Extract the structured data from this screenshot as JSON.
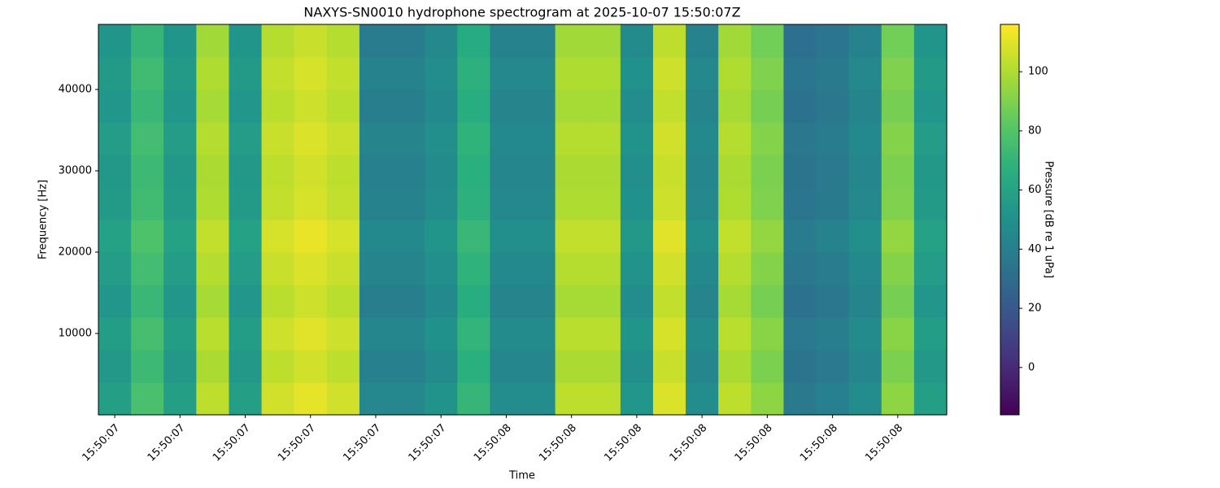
{
  "chart_data": {
    "type": "heatmap",
    "title": "NAXYS-SN0010 hydrophone spectrogram at 2025-10-07 15:50:07Z",
    "x_label": "Time",
    "y_label": "Frequency [Hz]",
    "colorbar_label": "Pressure [dB re 1 uPa]",
    "colormap": "viridis",
    "categories": [
      "15:50:07",
      null,
      "15:50:07",
      null,
      "15:50:07",
      null,
      "15:50:07",
      null,
      "15:50:07",
      null,
      "15:50:07",
      null,
      "15:50:08",
      null,
      "15:50:08",
      null,
      "15:50:08",
      null,
      "15:50:08",
      null,
      "15:50:08",
      null,
      "15:50:08",
      null,
      "15:50:08",
      null
    ],
    "ybins": [
      0,
      4000,
      8000,
      12000,
      16000,
      20000,
      24000,
      28000,
      32000,
      36000,
      40000,
      44000,
      48000
    ],
    "ylim": [
      0,
      48000
    ],
    "yticks": [
      10000,
      20000,
      30000,
      40000
    ],
    "clim": [
      -16,
      116
    ],
    "cticks": [
      0,
      20,
      40,
      60,
      80,
      100
    ],
    "values": [
      [
        58,
        77,
        58,
        103,
        58,
        107,
        111,
        107,
        45,
        45,
        51,
        71,
        48,
        48,
        103,
        103,
        53,
        109,
        48,
        103,
        93,
        38,
        41,
        48,
        93,
        58
      ],
      [
        54,
        73,
        54,
        99,
        54,
        103,
        107,
        103,
        41,
        41,
        47,
        67,
        44,
        44,
        99,
        99,
        49,
        105,
        44,
        99,
        89,
        34,
        37,
        44,
        89,
        54
      ],
      [
        57,
        76,
        57,
        102,
        57,
        106,
        110,
        106,
        44,
        44,
        50,
        70,
        47,
        47,
        102,
        102,
        52,
        108,
        47,
        102,
        92,
        37,
        40,
        47,
        92,
        57
      ],
      [
        53,
        72,
        53,
        98,
        53,
        102,
        106,
        102,
        40,
        40,
        46,
        66,
        43,
        43,
        98,
        98,
        48,
        104,
        43,
        98,
        88,
        33,
        36,
        43,
        88,
        53
      ],
      [
        56,
        75,
        56,
        101,
        56,
        105,
        109,
        105,
        43,
        43,
        49,
        69,
        46,
        46,
        101,
        101,
        51,
        107,
        46,
        101,
        91,
        36,
        39,
        46,
        91,
        56
      ],
      [
        59,
        78,
        59,
        104,
        59,
        108,
        112,
        108,
        46,
        46,
        52,
        72,
        49,
        49,
        104,
        104,
        54,
        110,
        49,
        104,
        94,
        39,
        42,
        49,
        94,
        59
      ],
      [
        55,
        74,
        55,
        100,
        55,
        104,
        108,
        104,
        42,
        42,
        48,
        68,
        45,
        45,
        100,
        100,
        50,
        106,
        45,
        100,
        90,
        35,
        38,
        45,
        90,
        55
      ],
      [
        54,
        73,
        54,
        99,
        54,
        103,
        107,
        103,
        41,
        41,
        47,
        67,
        44,
        44,
        99,
        99,
        49,
        105,
        44,
        99,
        89,
        34,
        37,
        44,
        89,
        54
      ],
      [
        56,
        75,
        56,
        101,
        56,
        105,
        109,
        105,
        43,
        43,
        49,
        69,
        46,
        46,
        101,
        101,
        51,
        107,
        46,
        101,
        91,
        36,
        39,
        46,
        91,
        56
      ],
      [
        53,
        72,
        53,
        98,
        53,
        102,
        106,
        102,
        40,
        40,
        46,
        66,
        43,
        43,
        98,
        98,
        48,
        104,
        43,
        98,
        88,
        33,
        36,
        43,
        88,
        53
      ],
      [
        55,
        74,
        55,
        100,
        55,
        104,
        108,
        104,
        42,
        42,
        48,
        68,
        45,
        45,
        100,
        100,
        50,
        106,
        45,
        100,
        90,
        35,
        38,
        45,
        90,
        55
      ],
      [
        52,
        71,
        52,
        97,
        52,
        101,
        105,
        101,
        39,
        39,
        45,
        65,
        42,
        42,
        97,
        97,
        47,
        103,
        42,
        97,
        87,
        32,
        35,
        42,
        87,
        52
      ]
    ]
  }
}
